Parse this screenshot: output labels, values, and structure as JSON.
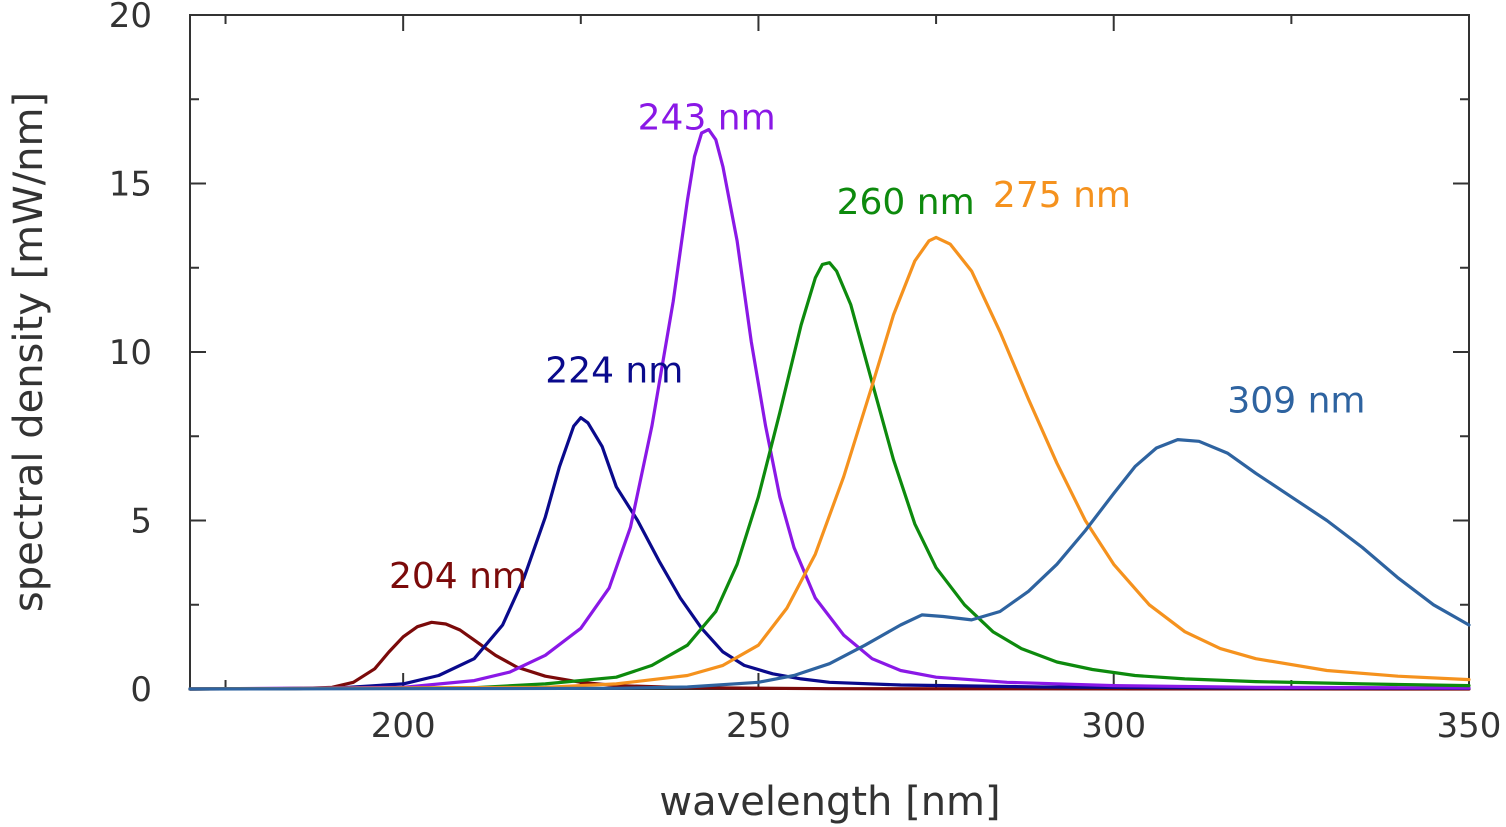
{
  "chart_data": {
    "type": "line",
    "xlabel": "wavelength [nm]",
    "ylabel": "spectral density  [mW/nm]",
    "xlim": [
      170,
      350
    ],
    "ylim": [
      0,
      20
    ],
    "x_ticks": [
      200,
      250,
      300,
      350
    ],
    "x_minor_ticks": [
      175,
      225,
      275,
      325
    ],
    "y_ticks": [
      0,
      5,
      10,
      15,
      20
    ],
    "y_minor_ticks": [
      2.5,
      7.5,
      12.5,
      17.5
    ],
    "grid": false,
    "series": [
      {
        "name": "204 nm",
        "color": "#7b0a0a",
        "points": [
          [
            170,
            0
          ],
          [
            185,
            0.01
          ],
          [
            190,
            0.05
          ],
          [
            193,
            0.2
          ],
          [
            196,
            0.6
          ],
          [
            198,
            1.1
          ],
          [
            200,
            1.55
          ],
          [
            202,
            1.85
          ],
          [
            204,
            1.98
          ],
          [
            206,
            1.93
          ],
          [
            208,
            1.75
          ],
          [
            210,
            1.45
          ],
          [
            213,
            1.0
          ],
          [
            216,
            0.65
          ],
          [
            220,
            0.38
          ],
          [
            225,
            0.2
          ],
          [
            230,
            0.1
          ],
          [
            240,
            0.04
          ],
          [
            260,
            0.01
          ],
          [
            350,
            0
          ]
        ]
      },
      {
        "name": "224 nm",
        "color": "#0a0a8c",
        "points": [
          [
            170,
            0
          ],
          [
            190,
            0.02
          ],
          [
            200,
            0.15
          ],
          [
            205,
            0.4
          ],
          [
            210,
            0.9
          ],
          [
            214,
            1.9
          ],
          [
            217,
            3.3
          ],
          [
            220,
            5.1
          ],
          [
            222,
            6.6
          ],
          [
            224,
            7.8
          ],
          [
            225,
            8.05
          ],
          [
            226,
            7.9
          ],
          [
            228,
            7.2
          ],
          [
            230,
            6.0
          ],
          [
            233,
            5.0
          ],
          [
            236,
            3.8
          ],
          [
            239,
            2.7
          ],
          [
            242,
            1.8
          ],
          [
            245,
            1.1
          ],
          [
            248,
            0.7
          ],
          [
            252,
            0.45
          ],
          [
            256,
            0.3
          ],
          [
            260,
            0.2
          ],
          [
            270,
            0.12
          ],
          [
            290,
            0.06
          ],
          [
            320,
            0.03
          ],
          [
            350,
            0.02
          ]
        ]
      },
      {
        "name": "243 nm",
        "color": "#8a18e6",
        "points": [
          [
            170,
            0
          ],
          [
            200,
            0.05
          ],
          [
            210,
            0.25
          ],
          [
            215,
            0.5
          ],
          [
            220,
            1.0
          ],
          [
            225,
            1.8
          ],
          [
            229,
            3.0
          ],
          [
            232,
            4.8
          ],
          [
            235,
            7.8
          ],
          [
            238,
            11.5
          ],
          [
            240,
            14.5
          ],
          [
            241,
            15.8
          ],
          [
            242,
            16.5
          ],
          [
            243,
            16.6
          ],
          [
            244,
            16.3
          ],
          [
            245,
            15.5
          ],
          [
            247,
            13.3
          ],
          [
            249,
            10.3
          ],
          [
            251,
            7.8
          ],
          [
            253,
            5.7
          ],
          [
            255,
            4.2
          ],
          [
            258,
            2.7
          ],
          [
            262,
            1.6
          ],
          [
            266,
            0.9
          ],
          [
            270,
            0.55
          ],
          [
            275,
            0.35
          ],
          [
            285,
            0.2
          ],
          [
            300,
            0.1
          ],
          [
            320,
            0.05
          ],
          [
            350,
            0.03
          ]
        ]
      },
      {
        "name": "260 nm",
        "color": "#0d8a0d",
        "points": [
          [
            170,
            0
          ],
          [
            210,
            0.04
          ],
          [
            220,
            0.15
          ],
          [
            230,
            0.35
          ],
          [
            235,
            0.7
          ],
          [
            240,
            1.3
          ],
          [
            244,
            2.3
          ],
          [
            247,
            3.7
          ],
          [
            250,
            5.7
          ],
          [
            253,
            8.2
          ],
          [
            256,
            10.8
          ],
          [
            258,
            12.2
          ],
          [
            259,
            12.6
          ],
          [
            260,
            12.65
          ],
          [
            261,
            12.4
          ],
          [
            263,
            11.4
          ],
          [
            266,
            9.1
          ],
          [
            269,
            6.8
          ],
          [
            272,
            4.9
          ],
          [
            275,
            3.6
          ],
          [
            279,
            2.5
          ],
          [
            283,
            1.7
          ],
          [
            287,
            1.2
          ],
          [
            292,
            0.8
          ],
          [
            297,
            0.58
          ],
          [
            303,
            0.4
          ],
          [
            310,
            0.3
          ],
          [
            320,
            0.22
          ],
          [
            335,
            0.15
          ],
          [
            350,
            0.1
          ]
        ]
      },
      {
        "name": "275 nm",
        "color": "#f5921e",
        "points": [
          [
            170,
            0
          ],
          [
            220,
            0.05
          ],
          [
            230,
            0.15
          ],
          [
            240,
            0.4
          ],
          [
            245,
            0.7
          ],
          [
            250,
            1.3
          ],
          [
            254,
            2.4
          ],
          [
            258,
            4.0
          ],
          [
            262,
            6.3
          ],
          [
            266,
            9.0
          ],
          [
            269,
            11.1
          ],
          [
            272,
            12.7
          ],
          [
            274,
            13.3
          ],
          [
            275,
            13.4
          ],
          [
            277,
            13.2
          ],
          [
            280,
            12.4
          ],
          [
            284,
            10.6
          ],
          [
            288,
            8.6
          ],
          [
            292,
            6.7
          ],
          [
            296,
            5.0
          ],
          [
            300,
            3.7
          ],
          [
            305,
            2.5
          ],
          [
            310,
            1.7
          ],
          [
            315,
            1.2
          ],
          [
            320,
            0.9
          ],
          [
            330,
            0.55
          ],
          [
            340,
            0.38
          ],
          [
            350,
            0.28
          ]
        ]
      },
      {
        "name": "309 nm",
        "color": "#2e63a0",
        "points": [
          [
            170,
            0
          ],
          [
            230,
            0.02
          ],
          [
            240,
            0.06
          ],
          [
            250,
            0.2
          ],
          [
            255,
            0.4
          ],
          [
            260,
            0.75
          ],
          [
            265,
            1.3
          ],
          [
            270,
            1.9
          ],
          [
            273,
            2.2
          ],
          [
            276,
            2.15
          ],
          [
            280,
            2.05
          ],
          [
            284,
            2.3
          ],
          [
            288,
            2.9
          ],
          [
            292,
            3.7
          ],
          [
            296,
            4.7
          ],
          [
            300,
            5.8
          ],
          [
            303,
            6.6
          ],
          [
            306,
            7.15
          ],
          [
            309,
            7.4
          ],
          [
            312,
            7.35
          ],
          [
            316,
            7.0
          ],
          [
            320,
            6.4
          ],
          [
            325,
            5.7
          ],
          [
            330,
            5.0
          ],
          [
            335,
            4.2
          ],
          [
            340,
            3.3
          ],
          [
            345,
            2.5
          ],
          [
            350,
            1.9
          ]
        ]
      }
    ],
    "annotations": [
      {
        "text": "204 nm",
        "color": "#7b0a0a",
        "x": 198,
        "y": 3.0
      },
      {
        "text": "224 nm",
        "color": "#0a0a8c",
        "x": 220,
        "y": 9.1
      },
      {
        "text": "243 nm",
        "color": "#8a18e6",
        "x": 233,
        "y": 16.6
      },
      {
        "text": "260 nm",
        "color": "#0d8a0d",
        "x": 261,
        "y": 14.1
      },
      {
        "text": "275 nm",
        "color": "#f5921e",
        "x": 283,
        "y": 14.3
      },
      {
        "text": "309 nm",
        "color": "#2e63a0",
        "x": 316,
        "y": 8.2
      }
    ]
  }
}
